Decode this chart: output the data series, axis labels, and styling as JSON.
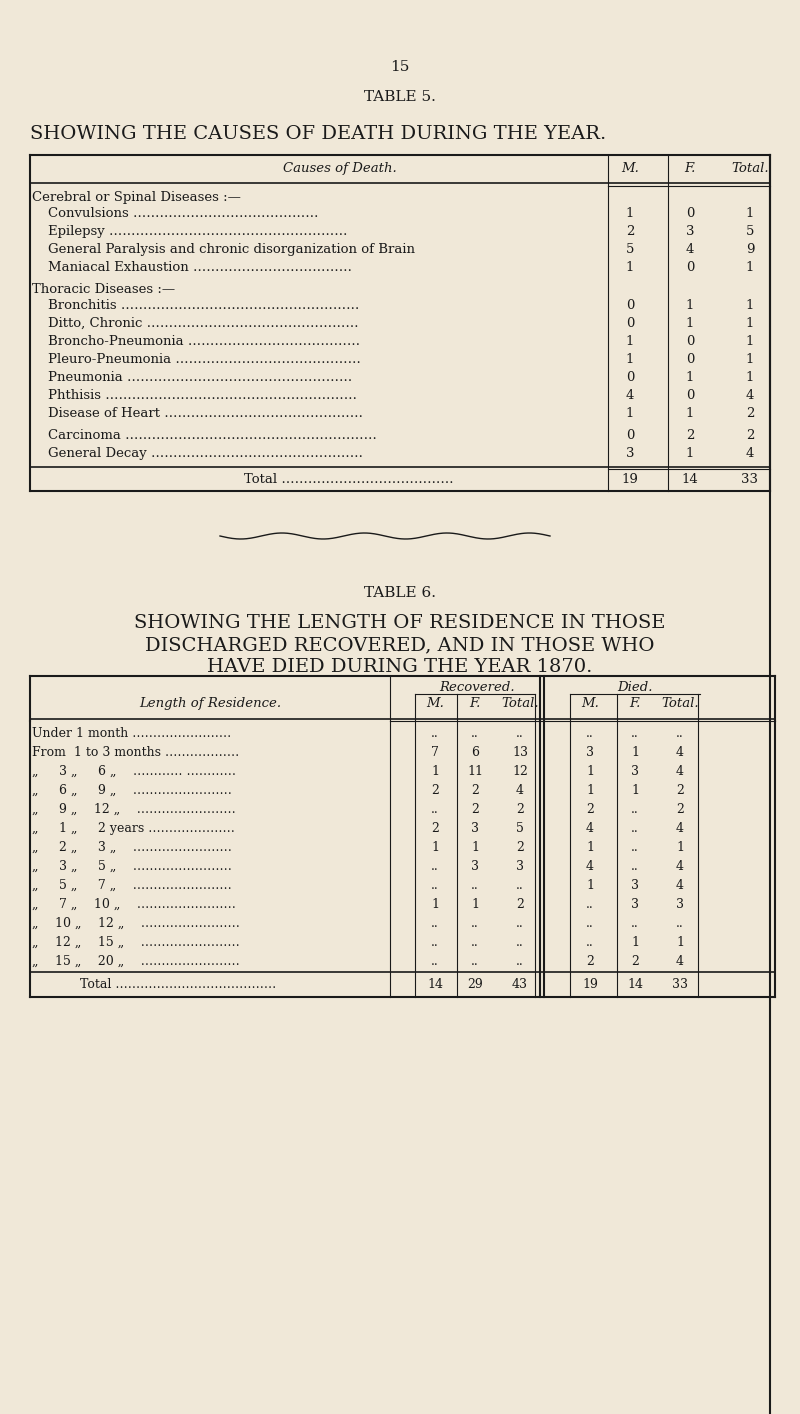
{
  "bg_color": "#f0e8d8",
  "page_number": "15",
  "table5": {
    "title1": "TABLE 5.",
    "title2": "SHOWING THE CAUSES OF DEATH DURING THE YEAR.",
    "col_headers": [
      "Causes of Death.",
      "M.",
      "F.",
      "Total."
    ],
    "sections": [
      {
        "section_header": "Cerebral or Spinal Diseases :—",
        "rows": [
          {
            "label": "Convulsions ……………………………………",
            "m": "1",
            "f": "0",
            "total": "1"
          },
          {
            "label": "Epilepsy ………………………………………………",
            "m": "2",
            "f": "3",
            "total": "5"
          },
          {
            "label": "General Paralysis and chronic disorganization of Brain",
            "m": "5",
            "f": "4",
            "total": "9"
          },
          {
            "label": "Maniacal Exhaustion ………………………………",
            "m": "1",
            "f": "0",
            "total": "1"
          }
        ]
      },
      {
        "section_header": "Thoracic Diseases :—",
        "rows": [
          {
            "label": "Bronchitis ………………………………………………",
            "m": "0",
            "f": "1",
            "total": "1"
          },
          {
            "label": "Ditto, Chronic …………………………………………",
            "m": "0",
            "f": "1",
            "total": "1"
          },
          {
            "label": "Broncho-Pneumonia …………………………………",
            "m": "1",
            "f": "0",
            "total": "1"
          },
          {
            "label": "Pleuro-Pneumonia ……………………………………",
            "m": "1",
            "f": "0",
            "total": "1"
          },
          {
            "label": "Pneumonia ……………………………………………",
            "m": "0",
            "f": "1",
            "total": "1"
          },
          {
            "label": "Phthisis …………………………………………………",
            "m": "4",
            "f": "0",
            "total": "4"
          },
          {
            "label": "Disease of Heart ………………………………………",
            "m": "1",
            "f": "1",
            "total": "2"
          }
        ]
      },
      {
        "section_header": null,
        "rows": [
          {
            "label": "Carcinoma …………………………………………………",
            "m": "0",
            "f": "2",
            "total": "2"
          },
          {
            "label": "General Decay …………………………………………",
            "m": "3",
            "f": "1",
            "total": "4"
          }
        ]
      }
    ],
    "total_row": {
      "label": "Total …………………………………",
      "m": "19",
      "f": "14",
      "total": "33"
    }
  },
  "table6": {
    "title1": "TABLE 6.",
    "title2_line1": "SHOWING THE LENGTH OF RESIDENCE IN THOSE",
    "title2_line2": "DISCHARGED RECOVERED, AND IN THOSE WHO",
    "title2_line3": "HAVE DIED DURING THE YEAR 1870.",
    "col_headers_top": [
      "Length of Residence.",
      "Recovered.",
      "Died."
    ],
    "col_headers_sub": [
      "M.",
      "F.",
      "Total.",
      "M.",
      "F.",
      "Total."
    ],
    "rows": [
      {
        "label": "Under 1 month ……………………",
        "rm": "..",
        "rf": "..",
        "rt": "..",
        "dm": "..",
        "df": "..",
        "dt": ".."
      },
      {
        "label": "From  1 to 3 months ………………",
        "rm": "7",
        "rf": "6",
        "rt": "13",
        "dm": "3",
        "df": "1",
        "dt": "4"
      },
      {
        "label": "„   3 „   6 „  ………… …………",
        "rm": "1",
        "rf": "11",
        "rt": "12",
        "dm": "1",
        "df": "3",
        "dt": "4"
      },
      {
        "label": "„   6 „   9 „  ……………………",
        "rm": "2",
        "rf": "2",
        "rt": "4",
        "dm": "1",
        "df": "1",
        "dt": "2"
      },
      {
        "label": "„   9 „  12 „  ……………………",
        "rm": "..",
        "rf": "2",
        "rt": "2",
        "dm": "2",
        "df": "..",
        "dt": "2"
      },
      {
        "label": "„   1 „   2 years …………………",
        "rm": "2",
        "rf": "3",
        "rt": "5",
        "dm": "4",
        "df": "..",
        "dt": "4"
      },
      {
        "label": "„   2 „   3 „  ……………………",
        "rm": "1",
        "rf": "1",
        "rt": "2",
        "dm": "1",
        "df": "..",
        "dt": "1"
      },
      {
        "label": "„   3 „   5 „  ……………………",
        "rm": "..",
        "rf": "3",
        "rt": "3",
        "dm": "4",
        "df": "..",
        "dt": "4"
      },
      {
        "label": "„   5 „   7 „  ……………………",
        "rm": "..",
        "rf": "..",
        "rt": "..",
        "dm": "1",
        "df": "3",
        "dt": "4"
      },
      {
        "label": "„   7 „  10 „  ……………………",
        "rm": "1",
        "rf": "1",
        "rt": "2",
        "dm": "..",
        "df": "3",
        "dt": "3"
      },
      {
        "label": "„  10 „  12 „  ……………………",
        "rm": "..",
        "rf": "..",
        "rt": "..",
        "dm": "..",
        "df": "..",
        "dt": ".."
      },
      {
        "label": "„  12 „  15 „  ……………………",
        "rm": "..",
        "rf": "..",
        "rt": "..",
        "dm": "..",
        "df": "1",
        "dt": "1"
      },
      {
        "label": "„  15 „  20 „  ……………………",
        "rm": "..",
        "rf": "..",
        "rt": "..",
        "dm": "2",
        "df": "2",
        "dt": "4"
      }
    ],
    "total_row": {
      "label": "Total …………………………………",
      "rm": "14",
      "rf": "29",
      "rt": "43",
      "dm": "19",
      "df": "14",
      "dt": "33"
    }
  }
}
